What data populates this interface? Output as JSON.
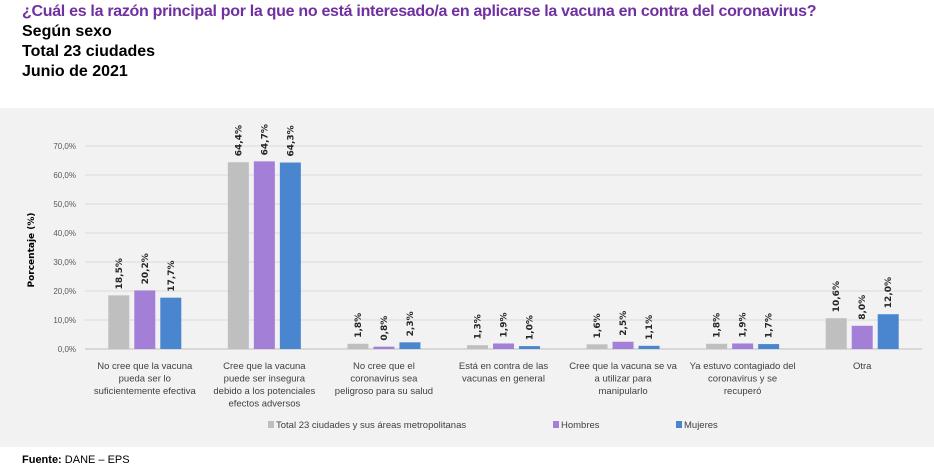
{
  "header": {
    "title": "¿Cuál es la razón principal por la que no está interesado/a en aplicarse la vacuna en contra del coronavirus?",
    "line1": "Según sexo",
    "line2": "Total 23 ciudades",
    "line3": "Junio de 2021"
  },
  "footer": {
    "label": "Fuente:",
    "text": "DANE – EPS"
  },
  "chart_data": {
    "type": "bar",
    "ylabel": "Porcentaje (%)",
    "ylim": [
      0,
      70
    ],
    "yticks": [
      "0,0%",
      "10,0%",
      "20,0%",
      "30,0%",
      "40,0%",
      "50,0%",
      "60,0%",
      "70,0%"
    ],
    "grid": true,
    "legend": "bottom",
    "categories": [
      [
        "No cree que la vacuna",
        "pueda ser lo",
        "suficientemente efectiva"
      ],
      [
        "Cree que la vacuna",
        "puede ser insegura",
        "debido a los potenciales",
        "efectos adversos"
      ],
      [
        "No cree que el",
        "coronavirus sea",
        "peligroso para su salud"
      ],
      [
        "Está en contra de las",
        "vacunas en general"
      ],
      [
        "Cree que la vacuna se va",
        "a utilizar para",
        "manipularlo"
      ],
      [
        "Ya estuvo contagiado del",
        "coronavirus y se",
        "recuperó"
      ],
      [
        "Otra"
      ]
    ],
    "series": [
      {
        "name": "Total 23 ciudades y sus áreas metropolitanas",
        "color": "#bfbfbf",
        "values": [
          18.5,
          64.4,
          1.8,
          1.3,
          1.6,
          1.8,
          10.6
        ],
        "labels": [
          "18,5%",
          "64,4%",
          "1,8%",
          "1,3%",
          "1,6%",
          "1,8%",
          "10,6%"
        ]
      },
      {
        "name": "Hombres",
        "color": "#a47fd8",
        "values": [
          20.2,
          64.7,
          0.8,
          1.9,
          2.5,
          1.9,
          8.0
        ],
        "labels": [
          "20,2%",
          "64,7%",
          "0,8%",
          "1,9%",
          "2,5%",
          "1,9%",
          "8,0%"
        ]
      },
      {
        "name": "Mujeres",
        "color": "#4a86d0",
        "values": [
          17.7,
          64.3,
          2.3,
          1.0,
          1.1,
          1.7,
          12.0
        ],
        "labels": [
          "17,7%",
          "64,3%",
          "2,3%",
          "1,0%",
          "1,1%",
          "1,7%",
          "12,0%"
        ]
      }
    ]
  }
}
